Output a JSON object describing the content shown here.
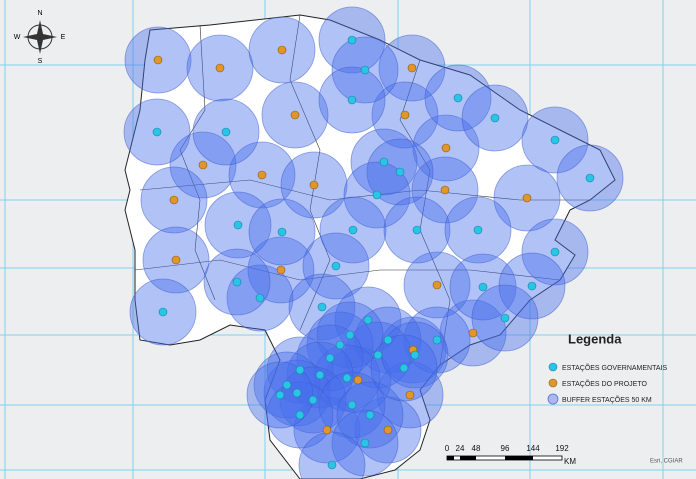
{
  "compass": {
    "north": "N",
    "south": "S",
    "east": "E",
    "west": "W"
  },
  "legend": {
    "title": "Legenda",
    "items": [
      "ESTAÇÕES GOVERNAMENTAIS",
      "ESTAÇÕES DO PROJETO",
      "BUFFER ESTAÇÕES 50 KM"
    ]
  },
  "scale_bar": {
    "labels": [
      "0",
      "24",
      "48",
      "96",
      "144",
      "192"
    ],
    "unit": "KM"
  },
  "attribution": "Esri, CGIAR"
}
